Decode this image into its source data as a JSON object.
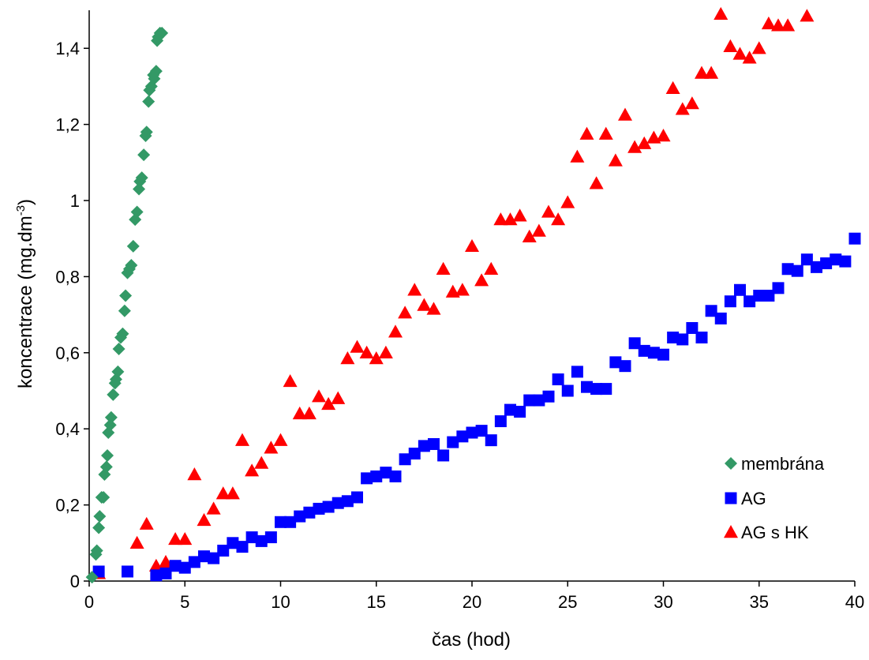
{
  "chart_data": {
    "type": "scatter",
    "title": "",
    "xlabel": "čas (hod)",
    "ylabel": {
      "main": "koncentrace (mg.dm",
      "sup": "-3",
      "end": ")"
    },
    "xlim": [
      0,
      40
    ],
    "ylim": [
      0,
      1.5
    ],
    "xticks": [
      "0",
      "5",
      "10",
      "15",
      "20",
      "25",
      "30",
      "35",
      "40"
    ],
    "xtick_values": [
      0,
      5,
      10,
      15,
      20,
      25,
      30,
      35,
      40
    ],
    "yticks": [
      "0",
      "0,2",
      "0,4",
      "0,6",
      "0,8",
      "1",
      "1,2",
      "1,4"
    ],
    "ytick_values": [
      0,
      0.2,
      0.4,
      0.6,
      0.8,
      1.0,
      1.2,
      1.4
    ],
    "grid": false,
    "legend_position": "bottom-right",
    "series": [
      {
        "name": "membrána",
        "marker": "diamond",
        "color": "#339966",
        "x": [
          0.15,
          0.35,
          0.4,
          0.5,
          0.55,
          0.65,
          0.75,
          0.8,
          0.9,
          0.95,
          1.0,
          1.1,
          1.15,
          1.25,
          1.35,
          1.4,
          1.5,
          1.55,
          1.65,
          1.75,
          1.85,
          1.9,
          2.0,
          2.1,
          2.2,
          2.3,
          2.4,
          2.5,
          2.6,
          2.65,
          2.75,
          2.85,
          2.95,
          3.0,
          3.1,
          3.15,
          3.25,
          3.35,
          3.4,
          3.5,
          3.55,
          3.6,
          3.7,
          3.8
        ],
        "y": [
          0.01,
          0.07,
          0.08,
          0.14,
          0.17,
          0.22,
          0.22,
          0.28,
          0.3,
          0.33,
          0.39,
          0.41,
          0.43,
          0.49,
          0.52,
          0.53,
          0.55,
          0.61,
          0.64,
          0.65,
          0.71,
          0.75,
          0.81,
          0.82,
          0.83,
          0.88,
          0.95,
          0.97,
          1.03,
          1.05,
          1.06,
          1.12,
          1.17,
          1.18,
          1.26,
          1.29,
          1.3,
          1.33,
          1.32,
          1.34,
          1.42,
          1.43,
          1.44,
          1.44
        ]
      },
      {
        "name": "AG",
        "marker": "square",
        "color": "#0000ff",
        "x": [
          0.5,
          2.0,
          3.5,
          4.0,
          4.5,
          5.0,
          5.5,
          6.0,
          6.5,
          7.0,
          7.5,
          8.0,
          8.5,
          9.0,
          9.5,
          10.0,
          10.5,
          11.0,
          11.5,
          12.0,
          12.5,
          13.0,
          13.5,
          14.0,
          14.5,
          15.0,
          15.5,
          16.0,
          16.5,
          17.0,
          17.5,
          18.0,
          18.5,
          19.0,
          19.5,
          20.0,
          20.5,
          21.0,
          21.5,
          22.0,
          22.5,
          23.0,
          23.5,
          24.0,
          24.5,
          25.0,
          25.5,
          26.0,
          26.5,
          27.0,
          27.5,
          28.0,
          28.5,
          29.0,
          29.5,
          30.0,
          30.5,
          31.0,
          31.5,
          32.0,
          32.5,
          33.0,
          33.5,
          34.0,
          34.5,
          35.0,
          35.5,
          36.0,
          36.5,
          37.0,
          37.5,
          38.0,
          38.5,
          39.0,
          39.5,
          40.0
        ],
        "y": [
          0.025,
          0.025,
          0.015,
          0.02,
          0.04,
          0.035,
          0.05,
          0.065,
          0.06,
          0.08,
          0.1,
          0.09,
          0.115,
          0.105,
          0.115,
          0.155,
          0.155,
          0.17,
          0.18,
          0.19,
          0.195,
          0.205,
          0.21,
          0.22,
          0.27,
          0.275,
          0.285,
          0.275,
          0.32,
          0.335,
          0.355,
          0.36,
          0.33,
          0.365,
          0.38,
          0.39,
          0.395,
          0.37,
          0.42,
          0.45,
          0.445,
          0.475,
          0.475,
          0.485,
          0.53,
          0.5,
          0.55,
          0.51,
          0.505,
          0.505,
          0.575,
          0.565,
          0.625,
          0.605,
          0.6,
          0.595,
          0.64,
          0.635,
          0.665,
          0.64,
          0.71,
          0.69,
          0.735,
          0.765,
          0.735,
          0.75,
          0.75,
          0.77,
          0.82,
          0.815,
          0.845,
          0.825,
          0.835,
          0.845,
          0.84,
          0.9
        ]
      },
      {
        "name": "AG s HK",
        "marker": "triangle",
        "color": "#ff0000",
        "x": [
          0.5,
          2.5,
          3.0,
          3.5,
          4.0,
          4.5,
          5.0,
          5.5,
          6.0,
          6.5,
          7.0,
          7.5,
          8.0,
          8.5,
          9.0,
          9.5,
          10.0,
          10.5,
          11.0,
          11.5,
          12.0,
          12.5,
          13.0,
          13.5,
          14.0,
          14.5,
          15.0,
          15.5,
          16.0,
          16.5,
          17.0,
          17.5,
          18.0,
          18.5,
          19.0,
          19.5,
          20.0,
          20.5,
          21.0,
          21.5,
          22.0,
          22.5,
          23.0,
          23.5,
          24.0,
          24.5,
          25.0,
          25.5,
          26.0,
          26.5,
          27.0,
          27.5,
          28.0,
          28.5,
          29.0,
          29.5,
          30.0,
          30.5,
          31.0,
          31.5,
          32.0,
          32.5,
          33.0,
          33.5,
          34.0,
          34.5,
          35.0,
          35.5,
          36.0,
          36.5,
          37.5
        ],
        "y": [
          0.02,
          0.1,
          0.15,
          0.04,
          0.05,
          0.11,
          0.11,
          0.28,
          0.16,
          0.19,
          0.23,
          0.23,
          0.37,
          0.29,
          0.31,
          0.35,
          0.37,
          0.525,
          0.44,
          0.44,
          0.485,
          0.465,
          0.48,
          0.585,
          0.615,
          0.6,
          0.585,
          0.6,
          0.655,
          0.705,
          0.765,
          0.725,
          0.715,
          0.82,
          0.76,
          0.765,
          0.88,
          0.79,
          0.82,
          0.95,
          0.95,
          0.96,
          0.905,
          0.92,
          0.97,
          0.95,
          0.995,
          1.115,
          1.175,
          1.045,
          1.175,
          1.105,
          1.225,
          1.14,
          1.15,
          1.165,
          1.17,
          1.295,
          1.24,
          1.255,
          1.335,
          1.335,
          1.49,
          1.405,
          1.385,
          1.375,
          1.4,
          1.465,
          1.46,
          1.46,
          1.485
        ]
      }
    ]
  }
}
